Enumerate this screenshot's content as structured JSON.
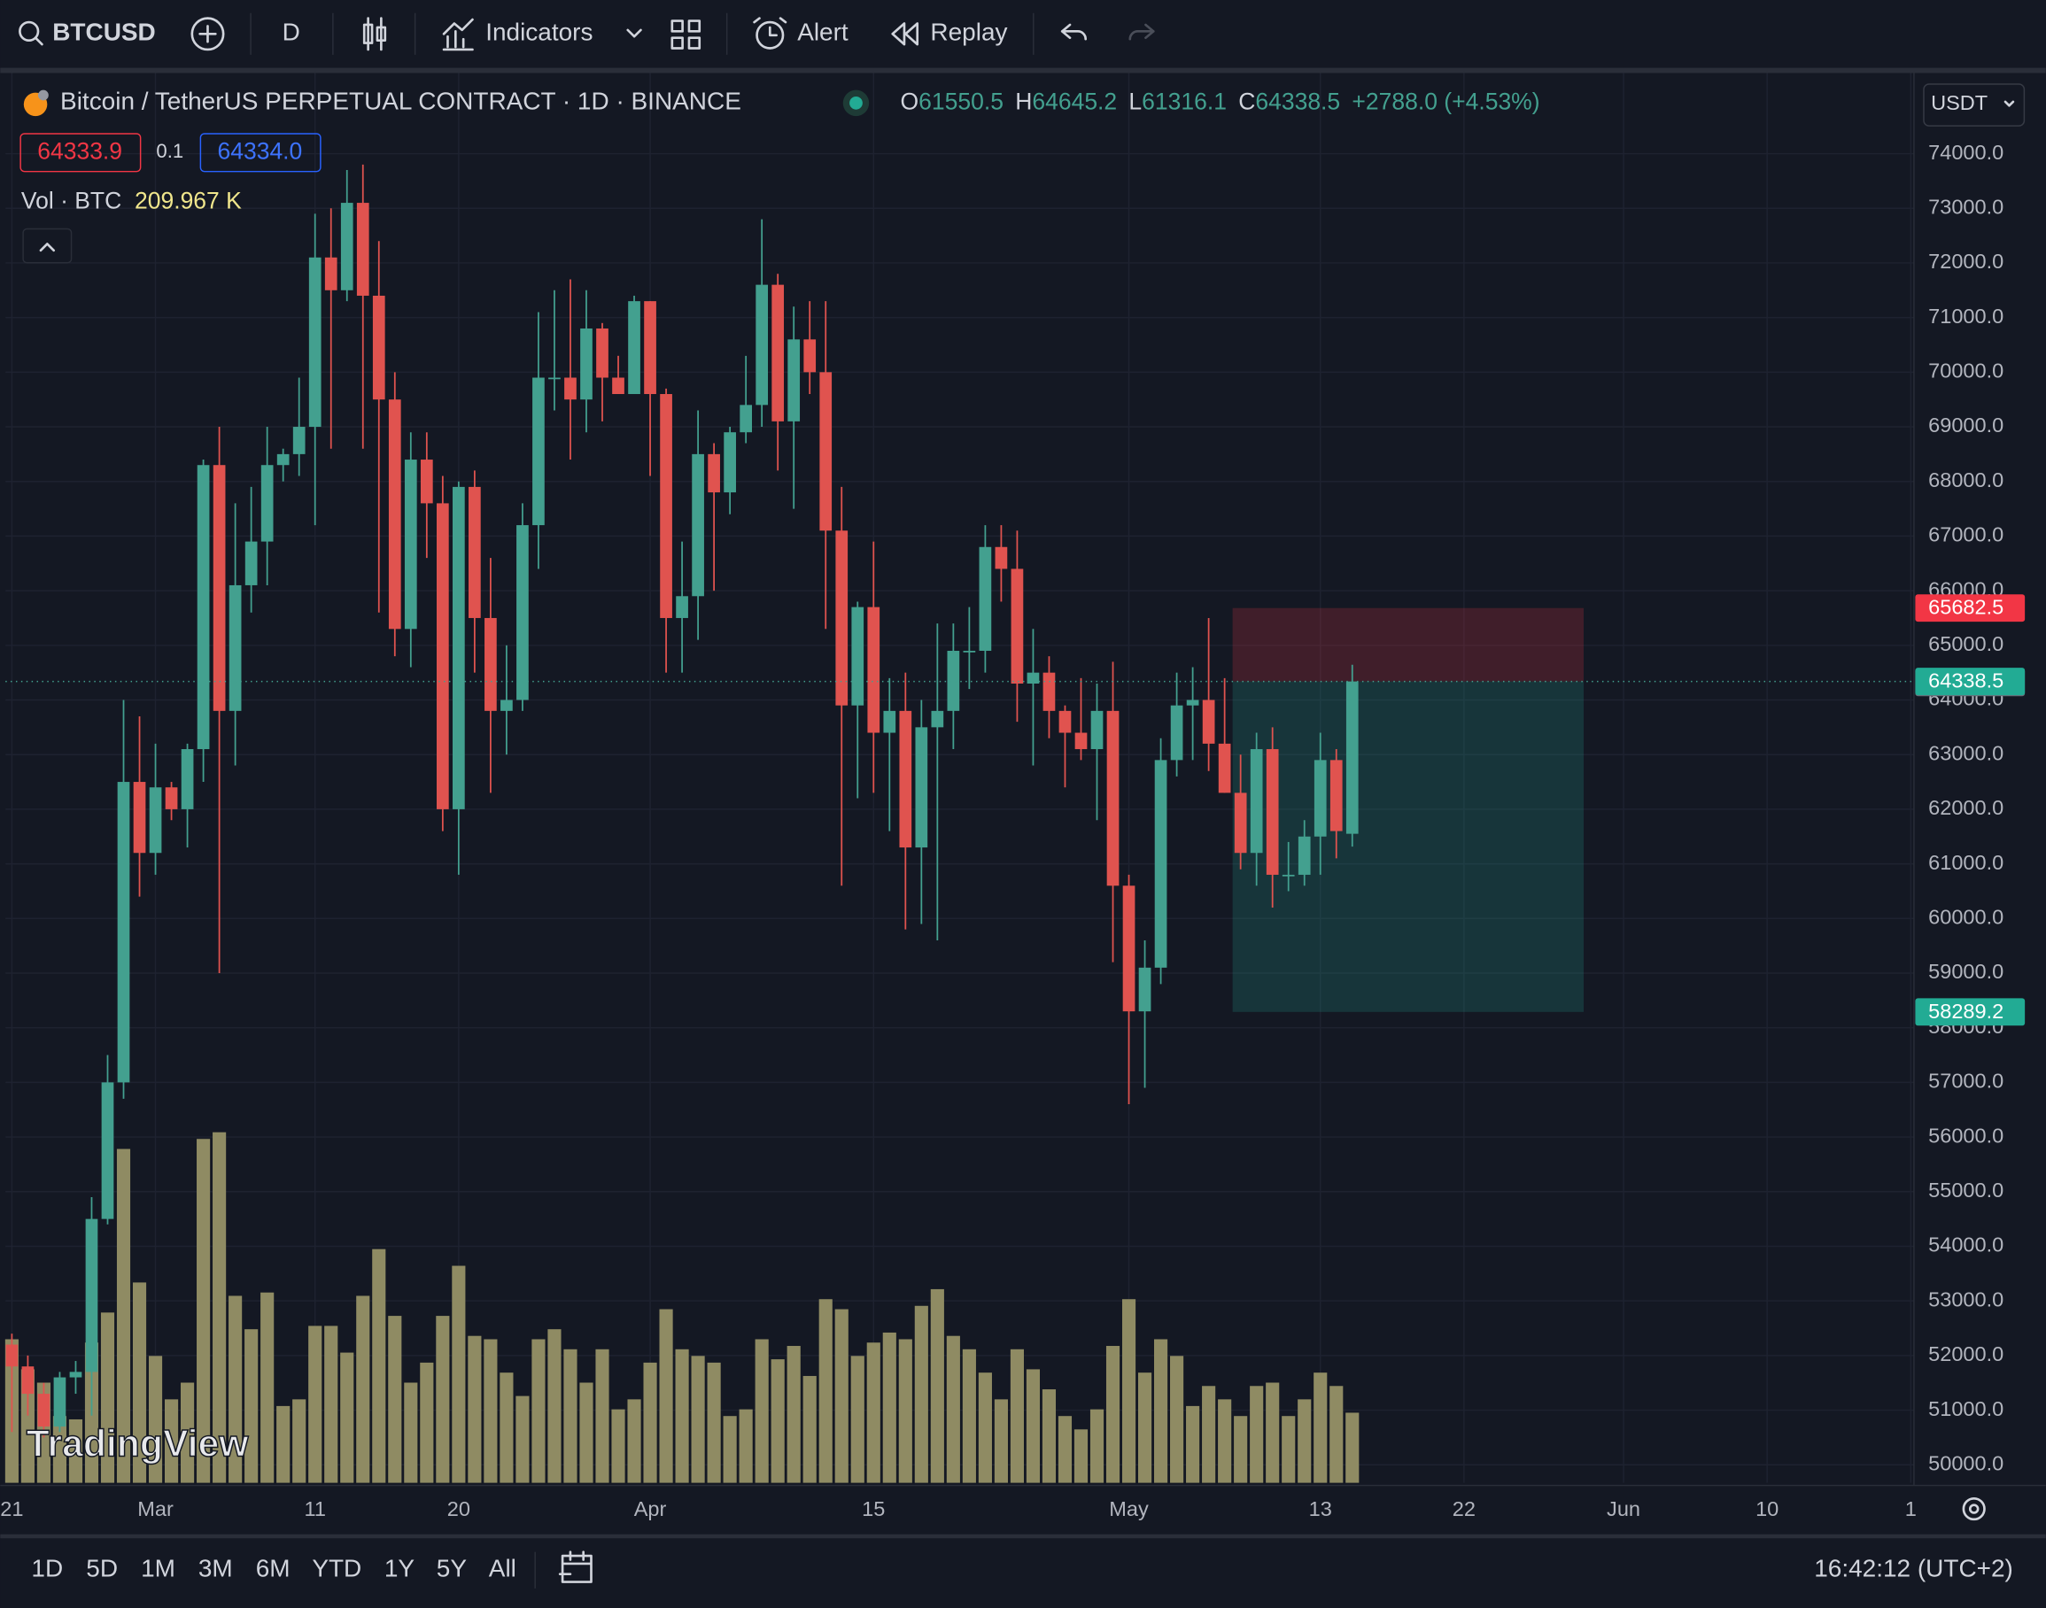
{
  "toolbar": {
    "symbol": "BTCUSD",
    "interval": "D",
    "indicators": "Indicators",
    "alert": "Alert",
    "replay": "Replay"
  },
  "legend": {
    "title": "Bitcoin / TetherUS PERPETUAL CONTRACT · 1D · BINANCE",
    "open_label": "O",
    "high_label": "H",
    "low_label": "L",
    "close_label": "C",
    "change": "+2788.0 (+4.53%)",
    "bid": "64333.9",
    "size": "0.1",
    "ask": "64334.0",
    "volume_title": "Vol · BTC",
    "volume_value": "209.967 K",
    "currency": "USDT"
  },
  "watermark": "TradingView",
  "bottom_bar": {
    "ranges": [
      "1D",
      "5D",
      "1M",
      "3M",
      "6M",
      "YTD",
      "1Y",
      "5Y",
      "All"
    ],
    "clock": "16:42:12 (UTC+2)"
  },
  "chart_data": {
    "type": "candlestick",
    "up_color": "#43a08f",
    "down_color": "#e0534f",
    "volume_color": "#8f8b63",
    "grid": true,
    "open": [
      52200,
      51800,
      51300,
      50700,
      51600,
      51700,
      54500,
      57000,
      62500,
      61200,
      62400,
      62000,
      63100,
      68300,
      63800,
      66100,
      66900,
      68300,
      68500,
      69000,
      72100,
      71500,
      73100,
      71400,
      69500,
      65300,
      68400,
      67600,
      62000,
      67900,
      65500,
      63800,
      64000,
      67200,
      69900,
      69900,
      69500,
      70800,
      69900,
      69600,
      71300,
      69600,
      65500,
      65900,
      68500,
      67800,
      68900,
      69400,
      71600,
      69100,
      70600,
      70000,
      67100,
      63900,
      65700,
      63400,
      63800,
      61300,
      63500,
      63800,
      64900,
      64900,
      66800,
      66400,
      64300,
      64500,
      63800,
      63400,
      63100,
      63800,
      60600,
      58300,
      59100,
      62900,
      63900,
      64000,
      63200,
      62300,
      61200,
      63100,
      60800,
      60800,
      61500,
      62900,
      61550.5
    ],
    "high": [
      52400,
      52000,
      51500,
      51700,
      51900,
      54900,
      57500,
      64000,
      63700,
      63200,
      62500,
      63200,
      68400,
      69000,
      67600,
      67900,
      69000,
      68600,
      69900,
      72900,
      73000,
      73700,
      73800,
      72400,
      70000,
      68900,
      68900,
      68100,
      68000,
      68200,
      66600,
      65000,
      67600,
      71100,
      71500,
      71700,
      71500,
      70900,
      70300,
      71400,
      71300,
      69700,
      66900,
      69300,
      68700,
      69000,
      70300,
      72800,
      71800,
      71200,
      71300,
      71300,
      67900,
      65800,
      66900,
      64400,
      64500,
      64000,
      65400,
      65400,
      65700,
      67200,
      67200,
      67100,
      65300,
      64800,
      63900,
      64400,
      64300,
      64700,
      60800,
      59600,
      63300,
      64500,
      64600,
      65500,
      64400,
      63000,
      63400,
      63500,
      61400,
      61800,
      63400,
      63100,
      64645.2
    ],
    "low": [
      50600,
      50900,
      50500,
      50600,
      51300,
      50900,
      54400,
      56700,
      60400,
      60800,
      61800,
      61300,
      62500,
      59000,
      62800,
      65600,
      66100,
      68000,
      68100,
      67200,
      68600,
      71300,
      68600,
      65600,
      64800,
      64600,
      66600,
      61600,
      60800,
      64500,
      62300,
      63000,
      63800,
      66400,
      69300,
      68400,
      68900,
      69100,
      69600,
      69600,
      68100,
      64500,
      64500,
      65100,
      66000,
      67400,
      68700,
      69000,
      68200,
      67500,
      69600,
      65300,
      60600,
      62200,
      62300,
      61600,
      59800,
      59900,
      59600,
      63100,
      64200,
      64500,
      65800,
      63600,
      62800,
      63300,
      62400,
      62900,
      61800,
      59200,
      56600,
      56900,
      58800,
      62600,
      62900,
      62700,
      62300,
      60900,
      60600,
      60200,
      60500,
      60600,
      60800,
      61100,
      61316.1
    ],
    "close": [
      51800,
      51300,
      50700,
      51600,
      51700,
      54500,
      57000,
      62500,
      61200,
      62400,
      62000,
      63100,
      68300,
      63800,
      66100,
      66900,
      68300,
      68500,
      69000,
      72100,
      71500,
      73100,
      71400,
      69500,
      65300,
      68400,
      67600,
      62000,
      67900,
      65500,
      63800,
      64000,
      67200,
      69900,
      69900,
      69500,
      70800,
      69900,
      69600,
      71300,
      69600,
      65500,
      65900,
      68500,
      67800,
      68900,
      69400,
      71600,
      69100,
      70600,
      70000,
      67100,
      63900,
      65700,
      63400,
      63800,
      61300,
      63500,
      63800,
      64900,
      64900,
      66800,
      66400,
      64300,
      64500,
      63800,
      63400,
      63100,
      63800,
      60600,
      58300,
      59100,
      62900,
      63900,
      64000,
      63200,
      62300,
      61200,
      63100,
      60800,
      60800,
      61500,
      62900,
      61600,
      64338.5
    ],
    "volume": [
      430000,
      340000,
      300000,
      200000,
      190000,
      420000,
      510000,
      1000000,
      600000,
      380000,
      250000,
      300000,
      1030000,
      1050000,
      560000,
      460000,
      570000,
      230000,
      250000,
      470000,
      470000,
      390000,
      560000,
      700000,
      500000,
      300000,
      360000,
      500000,
      650000,
      440000,
      430000,
      330000,
      260000,
      430000,
      460000,
      400000,
      300000,
      400000,
      220000,
      250000,
      360000,
      520000,
      400000,
      380000,
      360000,
      200000,
      220000,
      430000,
      370000,
      410000,
      320000,
      550000,
      520000,
      380000,
      420000,
      450000,
      430000,
      530000,
      580000,
      440000,
      400000,
      330000,
      250000,
      400000,
      340000,
      280000,
      200000,
      160000,
      220000,
      410000,
      550000,
      330000,
      430000,
      380000,
      230000,
      290000,
      250000,
      200000,
      290000,
      300000,
      200000,
      250000,
      330000,
      290000,
      209967
    ],
    "xlim": [
      -0.4,
      119.2
    ],
    "xticks": [
      {
        "value": 0,
        "label": "21"
      },
      {
        "value": 9,
        "label": "Mar"
      },
      {
        "value": 19,
        "label": "11"
      },
      {
        "value": 28,
        "label": "20"
      },
      {
        "value": 40,
        "label": "Apr"
      },
      {
        "value": 54,
        "label": "15"
      },
      {
        "value": 70,
        "label": "May"
      },
      {
        "value": 82,
        "label": "13"
      },
      {
        "value": 91,
        "label": "22"
      },
      {
        "value": 101,
        "label": "Jun"
      },
      {
        "value": 110,
        "label": "10"
      },
      {
        "value": 119,
        "label": "1"
      }
    ],
    "ylim": [
      49670,
      75500
    ],
    "yticks": [
      {
        "value": 50000,
        "label": "50000.0"
      },
      {
        "value": 51000,
        "label": "51000.0"
      },
      {
        "value": 52000,
        "label": "52000.0"
      },
      {
        "value": 53000,
        "label": "53000.0"
      },
      {
        "value": 54000,
        "label": "54000.0"
      },
      {
        "value": 55000,
        "label": "55000.0"
      },
      {
        "value": 56000,
        "label": "56000.0"
      },
      {
        "value": 57000,
        "label": "57000.0"
      },
      {
        "value": 58000,
        "label": "58000.0"
      },
      {
        "value": 59000,
        "label": "59000.0"
      },
      {
        "value": 60000,
        "label": "60000.0"
      },
      {
        "value": 61000,
        "label": "61000.0"
      },
      {
        "value": 62000,
        "label": "62000.0"
      },
      {
        "value": 63000,
        "label": "63000.0"
      },
      {
        "value": 64000,
        "label": "64000.0"
      },
      {
        "value": 65000,
        "label": "65000.0"
      },
      {
        "value": 66000,
        "label": "66000.0"
      },
      {
        "value": 67000,
        "label": "67000.0"
      },
      {
        "value": 68000,
        "label": "68000.0"
      },
      {
        "value": 69000,
        "label": "69000.0"
      },
      {
        "value": 70000,
        "label": "70000.0"
      },
      {
        "value": 71000,
        "label": "71000.0"
      },
      {
        "value": 72000,
        "label": "72000.0"
      },
      {
        "value": 73000,
        "label": "73000.0"
      },
      {
        "value": 74000,
        "label": "74000.0"
      }
    ],
    "position": {
      "stop": 65682.5,
      "entry": 64338.5,
      "target": 58289.2,
      "x_range": [
        76.5,
        98.5
      ],
      "stop_color": "#f23645",
      "target_color": "#22ab94"
    },
    "mark_price": 64319.5
  }
}
